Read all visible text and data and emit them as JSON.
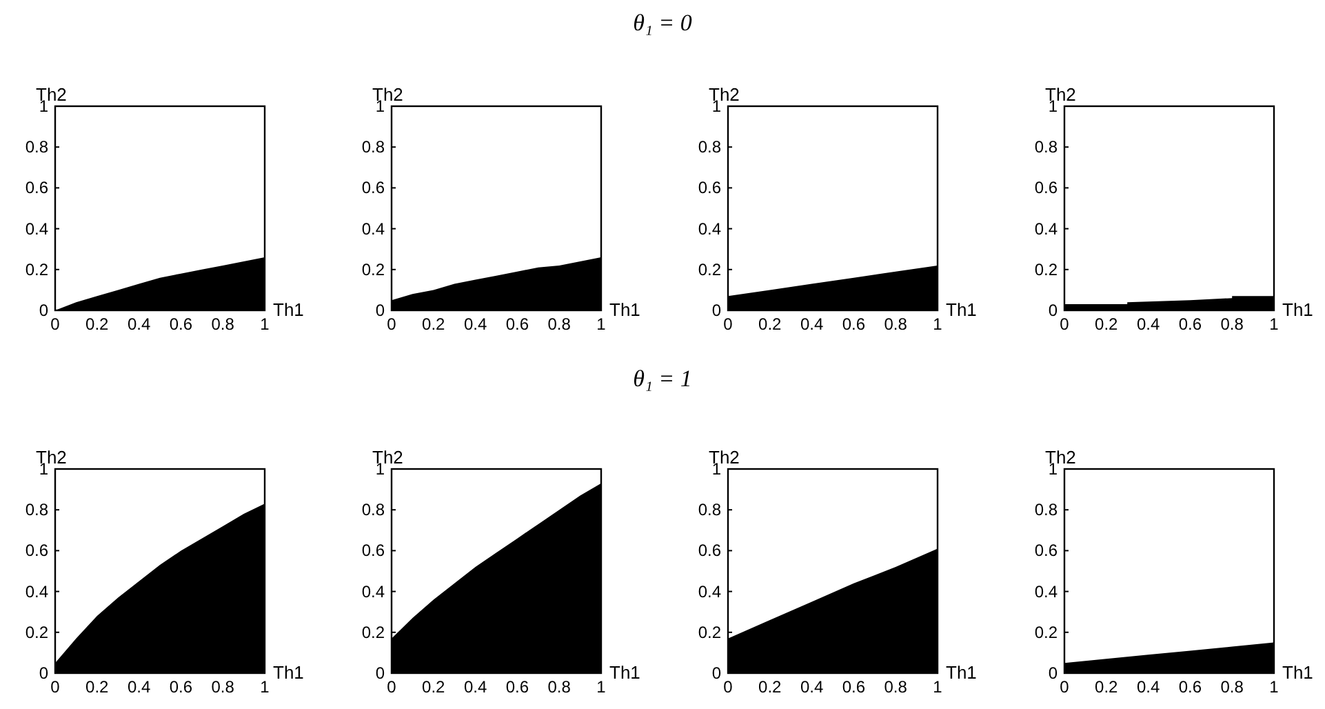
{
  "chart_data": [
    {
      "type": "other",
      "title": "θ₁ = 0"
    },
    {
      "type": "area",
      "xlabel": "Th1",
      "ylabel": "Th2",
      "x": [
        0,
        0.1,
        0.2,
        0.3,
        0.4,
        0.5,
        0.6,
        0.7,
        0.8,
        0.9,
        1
      ],
      "xlim": [
        0,
        1
      ],
      "ylim": [
        0,
        1
      ],
      "xticks": [
        0,
        0.2,
        0.4,
        0.6,
        0.8,
        1
      ],
      "yticks": [
        0,
        0.2,
        0.4,
        0.6,
        0.8,
        1
      ],
      "series": [
        {
          "color": "#000000",
          "values": [
            0.0,
            0.04,
            0.07,
            0.1,
            0.13,
            0.16,
            0.18,
            0.2,
            0.22,
            0.24,
            0.26
          ]
        }
      ]
    },
    {
      "type": "area",
      "xlabel": "Th1",
      "ylabel": "Th2",
      "x": [
        0,
        0.1,
        0.2,
        0.3,
        0.4,
        0.5,
        0.6,
        0.7,
        0.8,
        0.9,
        1
      ],
      "xlim": [
        0,
        1
      ],
      "ylim": [
        0,
        1
      ],
      "xticks": [
        0,
        0.2,
        0.4,
        0.6,
        0.8,
        1
      ],
      "yticks": [
        0,
        0.2,
        0.4,
        0.6,
        0.8,
        1
      ],
      "series": [
        {
          "color": "#000000",
          "values": [
            0.05,
            0.08,
            0.1,
            0.13,
            0.15,
            0.17,
            0.19,
            0.21,
            0.22,
            0.24,
            0.26
          ]
        }
      ]
    },
    {
      "type": "area",
      "xlabel": "Th1",
      "ylabel": "Th2",
      "x": [
        0,
        0.2,
        0.4,
        0.6,
        0.8,
        1
      ],
      "xlim": [
        0,
        1
      ],
      "ylim": [
        0,
        1
      ],
      "xticks": [
        0,
        0.2,
        0.4,
        0.6,
        0.8,
        1
      ],
      "yticks": [
        0,
        0.2,
        0.4,
        0.6,
        0.8,
        1
      ],
      "series": [
        {
          "color": "#000000",
          "values": [
            0.07,
            0.1,
            0.13,
            0.16,
            0.19,
            0.22
          ]
        }
      ]
    },
    {
      "type": "area",
      "xlabel": "Th1",
      "ylabel": "Th2",
      "x": [
        0,
        0.3,
        0.3,
        0.6,
        0.6,
        0.8,
        0.8,
        1
      ],
      "xlim": [
        0,
        1
      ],
      "ylim": [
        0,
        1
      ],
      "xticks": [
        0,
        0.2,
        0.4,
        0.6,
        0.8,
        1
      ],
      "yticks": [
        0,
        0.2,
        0.4,
        0.6,
        0.8,
        1
      ],
      "series": [
        {
          "color": "#000000",
          "values": [
            0.03,
            0.03,
            0.04,
            0.05,
            0.05,
            0.06,
            0.07,
            0.07
          ]
        }
      ]
    },
    {
      "type": "other",
      "title": "θ₁ = 1"
    },
    {
      "type": "area",
      "xlabel": "Th1",
      "ylabel": "Th2",
      "x": [
        0,
        0.1,
        0.2,
        0.3,
        0.4,
        0.5,
        0.6,
        0.7,
        0.8,
        0.9,
        1
      ],
      "xlim": [
        0,
        1
      ],
      "ylim": [
        0,
        1
      ],
      "xticks": [
        0,
        0.2,
        0.4,
        0.6,
        0.8,
        1
      ],
      "yticks": [
        0,
        0.2,
        0.4,
        0.6,
        0.8,
        1
      ],
      "series": [
        {
          "color": "#000000",
          "values": [
            0.05,
            0.17,
            0.28,
            0.37,
            0.45,
            0.53,
            0.6,
            0.66,
            0.72,
            0.78,
            0.83
          ]
        }
      ]
    },
    {
      "type": "area",
      "xlabel": "Th1",
      "ylabel": "Th2",
      "x": [
        0,
        0.1,
        0.2,
        0.3,
        0.4,
        0.5,
        0.6,
        0.7,
        0.8,
        0.9,
        1
      ],
      "xlim": [
        0,
        1
      ],
      "ylim": [
        0,
        1
      ],
      "xticks": [
        0,
        0.2,
        0.4,
        0.6,
        0.8,
        1
      ],
      "yticks": [
        0,
        0.2,
        0.4,
        0.6,
        0.8,
        1
      ],
      "series": [
        {
          "color": "#000000",
          "values": [
            0.17,
            0.27,
            0.36,
            0.44,
            0.52,
            0.59,
            0.66,
            0.73,
            0.8,
            0.87,
            0.93
          ]
        }
      ]
    },
    {
      "type": "area",
      "xlabel": "Th1",
      "ylabel": "Th2",
      "x": [
        0,
        0.2,
        0.4,
        0.6,
        0.8,
        1
      ],
      "xlim": [
        0,
        1
      ],
      "ylim": [
        0,
        1
      ],
      "xticks": [
        0,
        0.2,
        0.4,
        0.6,
        0.8,
        1
      ],
      "yticks": [
        0,
        0.2,
        0.4,
        0.6,
        0.8,
        1
      ],
      "series": [
        {
          "color": "#000000",
          "values": [
            0.17,
            0.26,
            0.35,
            0.44,
            0.52,
            0.61
          ]
        }
      ]
    },
    {
      "type": "area",
      "xlabel": "Th1",
      "ylabel": "Th2",
      "x": [
        0,
        0.2,
        0.4,
        0.6,
        0.8,
        1
      ],
      "xlim": [
        0,
        1
      ],
      "ylim": [
        0,
        1
      ],
      "xticks": [
        0,
        0.2,
        0.4,
        0.6,
        0.8,
        1
      ],
      "yticks": [
        0,
        0.2,
        0.4,
        0.6,
        0.8,
        1
      ],
      "series": [
        {
          "color": "#000000",
          "values": [
            0.05,
            0.07,
            0.09,
            0.11,
            0.13,
            0.15
          ]
        }
      ]
    }
  ]
}
